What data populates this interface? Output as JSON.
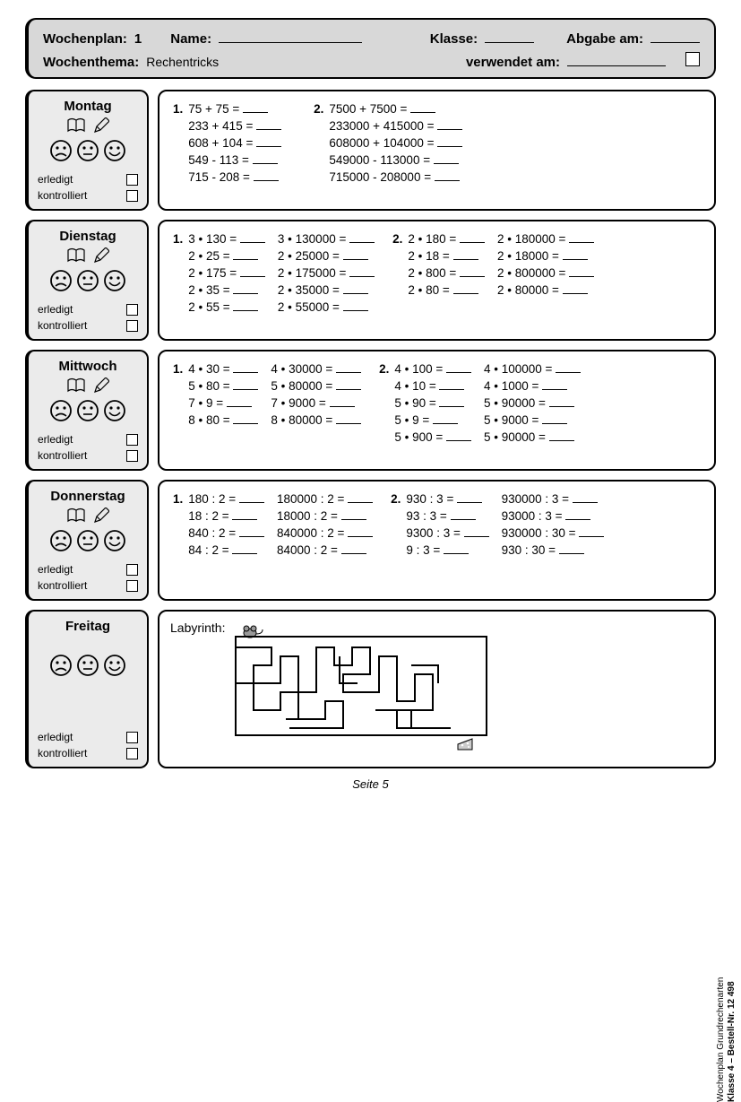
{
  "header": {
    "wochenplan_label": "Wochenplan:",
    "wochenplan_num": "1",
    "name_label": "Name:",
    "klasse_label": "Klasse:",
    "abgabe_label": "Abgabe am:",
    "wochenthema_label": "Wochenthema:",
    "wochenthema_value": "Rechentricks",
    "verwendet_label": "verwendet am:"
  },
  "status": {
    "erledigt": "erledigt",
    "kontrolliert": "kontrolliert"
  },
  "days": {
    "mon": "Montag",
    "tue": "Dienstag",
    "wed": "Mittwoch",
    "thu": "Donnerstag",
    "fri": "Freitag"
  },
  "labels": {
    "n1": "1.",
    "n2": "2.",
    "labyrinth": "Labyrinth:"
  },
  "monday": {
    "col1": [
      "75 + 75 =",
      "233 + 415 =",
      "608 + 104 =",
      "549 - 113 =",
      "715 - 208 ="
    ],
    "col2": [
      "7500 + 7500 =",
      "233000 + 415000 =",
      "608000 + 104000 =",
      "549000 - 113000 =",
      "715000 - 208000 ="
    ]
  },
  "tuesday": {
    "c1": [
      "3 • 130 =",
      "2 •  25 =",
      "2 • 175 =",
      "2 •  35 =",
      "2 •  55 ="
    ],
    "c2": [
      "3 • 130000 =",
      "2 •  25000 =",
      "2 • 175000 =",
      "2 •  35000 =",
      "2 •  55000 ="
    ],
    "c3": [
      "2 • 180 =",
      "2 •  18 =",
      "2 • 800 =",
      "2 •  80 ="
    ],
    "c4": [
      "2 • 180000 =",
      "2 •  18000 =",
      "2 • 800000 =",
      "2 •  80000 ="
    ]
  },
  "wednesday": {
    "c1": [
      "4 • 30 =",
      "5 • 80 =",
      "7 •  9 =",
      "8 • 80 ="
    ],
    "c2": [
      "4 • 30000 =",
      "5 • 80000 =",
      "7 •  9000 =",
      "8 • 80000 ="
    ],
    "c3": [
      "4 • 100 =",
      "4 •  10 =",
      "5 •  90 =",
      "5 •   9 =",
      "5 • 900 ="
    ],
    "c4": [
      "4 • 100000 =",
      "4 •   1000 =",
      "5 •  90000 =",
      "5 •   9000 =",
      "5 •  90000 ="
    ]
  },
  "thursday": {
    "c1": [
      "180 : 2 =",
      "18 : 2 =",
      "840 : 2 =",
      "84 : 2 ="
    ],
    "c2": [
      "180000 : 2 =",
      "18000 : 2 =",
      "840000 : 2 =",
      "84000 : 2 ="
    ],
    "c3": [
      "930 : 3 =",
      "93 : 3 =",
      "9300 : 3 =",
      "9 : 3 ="
    ],
    "c4": [
      "930000 : 3  =",
      "93000 : 3  =",
      "930000 : 30 =",
      "930 : 30 ="
    ]
  },
  "footer": {
    "page": "Seite 5"
  },
  "side": {
    "l1": "Wochenplan Grundrechenarten",
    "l2": "Klasse 4  –  Bestell-Nr. 12 498"
  }
}
